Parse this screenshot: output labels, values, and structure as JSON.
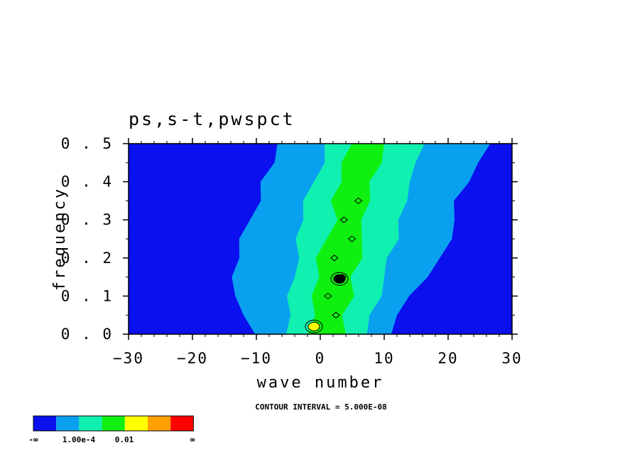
{
  "chart_data": {
    "type": "heatmap",
    "title": "ps,s-t,pwspct",
    "xlabel": "wave number",
    "ylabel": "frequency",
    "xlim": [
      -30,
      30
    ],
    "ylim": [
      0.0,
      0.5
    ],
    "x_ticks": [
      "-30",
      "-20",
      "-10",
      "0",
      "10",
      "20",
      "30"
    ],
    "y_ticks": [
      "0.0",
      "0.1",
      "0.2",
      "0.3",
      "0.4",
      "0.5"
    ],
    "contour_interval": "CONTOUR INTERVAL = 5.000E-08",
    "colorbar": {
      "colors": [
        "#0a10ee",
        "#0aa0f0",
        "#10f0b0",
        "#10f010",
        "#ffff00",
        "#ffa000",
        "#ff0000"
      ],
      "labels": [
        "-∞",
        "1.00e-4",
        "0.01",
        "∞"
      ]
    },
    "bands": [
      {
        "level": "1.00e-4 to 0.01",
        "color": "#0aa0f0",
        "points": [
          [
            0.0,
            -9.5,
            10.5
          ],
          [
            0.05,
            -12,
            12
          ],
          [
            0.1,
            -14,
            14.5
          ],
          [
            0.15,
            -13.5,
            16.5
          ],
          [
            0.2,
            -13,
            19
          ],
          [
            0.25,
            -12,
            20
          ],
          [
            0.3,
            -11,
            21
          ],
          [
            0.35,
            -10,
            21.5
          ],
          [
            0.4,
            -9,
            23
          ],
          [
            0.45,
            -7.5,
            25
          ],
          [
            0.5,
            -6,
            26
          ]
        ]
      },
      {
        "level": "0.01 upper",
        "color": "#10f0b0",
        "points": [
          [
            0.0,
            -5,
            7
          ],
          [
            0.05,
            -5,
            8
          ],
          [
            0.1,
            -4.5,
            9
          ],
          [
            0.15,
            -4,
            10
          ],
          [
            0.2,
            -4,
            11
          ],
          [
            0.25,
            -3.5,
            12
          ],
          [
            0.3,
            -3,
            12.5
          ],
          [
            0.35,
            -2,
            13
          ],
          [
            0.4,
            -1,
            14
          ],
          [
            0.45,
            0,
            15.5
          ],
          [
            0.5,
            1,
            16
          ]
        ]
      },
      {
        "level": "green core",
        "color": "#10f010",
        "points": [
          [
            0.0,
            -2,
            4
          ],
          [
            0.05,
            -1.5,
            4
          ],
          [
            0.1,
            -1,
            5
          ],
          [
            0.15,
            -0.5,
            5
          ],
          [
            0.2,
            0,
            6
          ],
          [
            0.25,
            1,
            6.5
          ],
          [
            0.3,
            2,
            7
          ],
          [
            0.35,
            2,
            7.5
          ],
          [
            0.4,
            3,
            8
          ],
          [
            0.45,
            4,
            9
          ],
          [
            0.5,
            5,
            10
          ]
        ]
      }
    ],
    "peaks": [
      {
        "x": -1,
        "y": 0.02,
        "color": "#ffff00"
      },
      {
        "x": 3,
        "y": 0.145,
        "color": "#000000"
      }
    ]
  }
}
